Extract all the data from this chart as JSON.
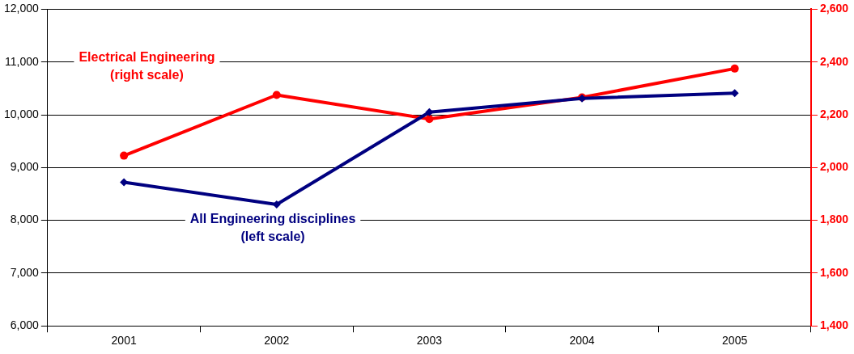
{
  "chart_data": {
    "type": "line",
    "categories": [
      "2001",
      "2002",
      "2003",
      "2004",
      "2005"
    ],
    "series": [
      {
        "color": "#ff0000",
        "values": [
          2045,
          2275,
          2184,
          2266,
          2375
        ],
        "axis": "y2",
        "marker": "circle"
      },
      {
        "color": "#000080",
        "values": [
          8720,
          8300,
          10050,
          10310,
          10410
        ],
        "marker": "diamond"
      }
    ],
    "ylim": [
      6000,
      12000
    ],
    "yticks": [
      {
        "value": 6000,
        "label": "6,000"
      },
      {
        "value": 7000,
        "label": "7,000"
      },
      {
        "value": 8000,
        "label": "8,000"
      },
      {
        "value": 9000,
        "label": "9,000"
      },
      {
        "value": 10000,
        "label": "10,000"
      },
      {
        "value": 11000,
        "label": "11,000"
      },
      {
        "value": 12000,
        "label": "12,000"
      }
    ],
    "y2lim": [
      1400,
      2600
    ],
    "y2ticks": [
      {
        "value": 1400,
        "label": "1,400"
      },
      {
        "value": 1600,
        "label": "1,600"
      },
      {
        "value": 1800,
        "label": "1,800"
      },
      {
        "value": 2000,
        "label": "2,000"
      },
      {
        "value": 2200,
        "label": "2,200"
      },
      {
        "value": 2400,
        "label": "2,400"
      },
      {
        "value": 2600,
        "label": "2,600"
      }
    ],
    "annotations": [
      "Electrical Engineering\n(right scale)",
      "All Engineering disciplines\n(left scale)"
    ],
    "grid": "y",
    "legend": false,
    "line_style": "solid"
  }
}
